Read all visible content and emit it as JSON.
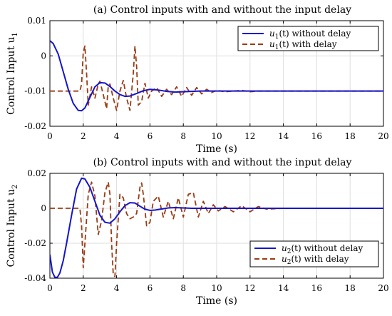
{
  "chart_data": [
    {
      "type": "line",
      "title": "(a) Control inputs with and without the input delay",
      "xlabel": "Time (s)",
      "ylabel": "Control Input u",
      "ylabel_sub": "1",
      "xlim": [
        0,
        20
      ],
      "ylim": [
        -0.02,
        0.01
      ],
      "xticks": [
        "0",
        "2",
        "4",
        "6",
        "8",
        "10",
        "12",
        "14",
        "16",
        "18",
        "20"
      ],
      "yticks": [
        "0.01",
        "0",
        "-0.01",
        "-0.02"
      ],
      "grid": true,
      "legend_position": "top-right",
      "series": [
        {
          "name": "u1(t) without delay",
          "legend_main": "u",
          "legend_sub": "1",
          "legend_rest": "(t) without delay",
          "color": "#1515cc",
          "style": "solid",
          "x": [
            0,
            0.2,
            0.5,
            0.8,
            1.1,
            1.4,
            1.7,
            1.9,
            2.1,
            2.4,
            2.7,
            3.0,
            3.3,
            3.6,
            3.9,
            4.2,
            4.5,
            4.8,
            5.2,
            5.6,
            6.0,
            6.5,
            7.0,
            7.5,
            8.0,
            9.0,
            10.0,
            12.0,
            14.0,
            16.0,
            18.0,
            20.0
          ],
          "y": [
            0.0043,
            0.0035,
            0.0005,
            -0.0045,
            -0.0095,
            -0.0135,
            -0.0155,
            -0.0156,
            -0.0148,
            -0.0118,
            -0.0088,
            -0.0076,
            -0.0077,
            -0.0087,
            -0.01,
            -0.011,
            -0.0115,
            -0.0114,
            -0.0107,
            -0.0099,
            -0.0095,
            -0.0097,
            -0.0101,
            -0.0103,
            -0.0102,
            -0.01,
            -0.01,
            -0.01,
            -0.01,
            -0.01,
            -0.01,
            -0.01
          ]
        },
        {
          "name": "u1(t) with delay",
          "legend_main": "u",
          "legend_sub": "1",
          "legend_rest": "(t) with delay",
          "color": "#9a3c14",
          "style": "dashed",
          "x": [
            0,
            1.8,
            1.9,
            2.0,
            2.1,
            2.2,
            2.3,
            2.5,
            2.7,
            2.9,
            3.0,
            3.2,
            3.4,
            3.5,
            3.6,
            3.8,
            4.0,
            4.2,
            4.4,
            4.6,
            4.8,
            5.0,
            5.1,
            5.2,
            5.3,
            5.5,
            5.7,
            5.9,
            6.1,
            6.4,
            6.7,
            7.0,
            7.3,
            7.6,
            7.9,
            8.2,
            8.5,
            8.8,
            9.1,
            9.4,
            9.7,
            10.0,
            10.5,
            11.0,
            11.5,
            12.0,
            12.5,
            13.0,
            14.0,
            20.0
          ],
          "y": [
            -0.01,
            -0.01,
            -0.008,
            0.001,
            0.0028,
            -0.005,
            -0.014,
            -0.0088,
            -0.012,
            -0.008,
            -0.0072,
            -0.011,
            -0.015,
            -0.0085,
            -0.008,
            -0.012,
            -0.0155,
            -0.01,
            -0.007,
            -0.012,
            -0.0155,
            -0.005,
            0.0028,
            -0.003,
            -0.014,
            -0.013,
            -0.0078,
            -0.012,
            -0.01,
            -0.009,
            -0.0115,
            -0.0095,
            -0.011,
            -0.0088,
            -0.0115,
            -0.009,
            -0.0112,
            -0.009,
            -0.0108,
            -0.0095,
            -0.0104,
            -0.0098,
            -0.0102,
            -0.01,
            -0.0098,
            -0.0102,
            -0.01,
            -0.01,
            -0.01,
            -0.01
          ]
        }
      ]
    },
    {
      "type": "line",
      "title": "(b) Control inputs with and without the input delay",
      "xlabel": "Time (s)",
      "ylabel": "Control Input u",
      "ylabel_sub": "2",
      "xlim": [
        0,
        20
      ],
      "ylim": [
        -0.04,
        0.02
      ],
      "xticks": [
        "0",
        "2",
        "4",
        "6",
        "8",
        "10",
        "12",
        "14",
        "16",
        "18",
        "20"
      ],
      "yticks": [
        "0.02",
        "0",
        "-0.02",
        "-0.04"
      ],
      "grid": true,
      "legend_position": "bottom-right",
      "series": [
        {
          "name": "u2(t) without delay",
          "legend_main": "u",
          "legend_sub": "2",
          "legend_rest": "(t) without delay",
          "color": "#1515cc",
          "style": "solid",
          "x": [
            0,
            0.15,
            0.3,
            0.45,
            0.6,
            0.8,
            1.0,
            1.3,
            1.6,
            1.9,
            2.1,
            2.4,
            2.7,
            3.0,
            3.3,
            3.6,
            3.9,
            4.2,
            4.5,
            4.8,
            5.1,
            5.4,
            5.7,
            6.0,
            6.3,
            6.7,
            7.1,
            7.5,
            8.0,
            8.5,
            9.0,
            10.0,
            12.0,
            14.0,
            16.0,
            18.0,
            20.0
          ],
          "y": [
            -0.0265,
            -0.0365,
            -0.0395,
            -0.0395,
            -0.037,
            -0.03,
            -0.02,
            -0.004,
            0.011,
            0.0172,
            0.0168,
            0.012,
            0.004,
            -0.004,
            -0.008,
            -0.0085,
            -0.006,
            -0.002,
            0.0015,
            0.0032,
            0.003,
            0.0012,
            -0.0005,
            -0.0012,
            -0.001,
            -0.0004,
            0.0002,
            0.0004,
            0.0002,
            0.0,
            0.0,
            0.0,
            0.0,
            0.0,
            0.0,
            0.0,
            0.0
          ]
        },
        {
          "name": "u2(t) with delay",
          "legend_main": "u",
          "legend_sub": "2",
          "legend_rest": "(t) with delay",
          "color": "#9a3c14",
          "style": "dashed",
          "x": [
            0,
            1.8,
            1.9,
            2.0,
            2.1,
            2.3,
            2.5,
            2.7,
            2.9,
            3.1,
            3.3,
            3.5,
            3.6,
            3.7,
            3.8,
            3.9,
            4.0,
            4.2,
            4.4,
            4.6,
            4.8,
            5.0,
            5.2,
            5.4,
            5.5,
            5.6,
            5.8,
            6.0,
            6.2,
            6.5,
            6.8,
            7.1,
            7.4,
            7.7,
            8.0,
            8.3,
            8.6,
            8.9,
            9.2,
            9.5,
            9.8,
            10.1,
            10.5,
            11.0,
            11.5,
            12.0,
            12.5,
            13.0,
            14.0,
            20.0
          ],
          "y": [
            0.0,
            0.0,
            -0.01,
            -0.034,
            -0.02,
            0.008,
            0.015,
            0.007,
            -0.015,
            -0.007,
            0.009,
            0.015,
            0.008,
            -0.02,
            -0.038,
            -0.039,
            -0.02,
            0.008,
            0.006,
            -0.003,
            -0.006,
            -0.005,
            -0.003,
            0.012,
            0.0145,
            0.008,
            -0.01,
            -0.008,
            0.004,
            0.007,
            -0.005,
            0.004,
            -0.006,
            0.006,
            -0.005,
            0.008,
            0.009,
            -0.005,
            0.004,
            -0.003,
            0.002,
            -0.0015,
            0.001,
            -0.002,
            0.0015,
            -0.002,
            0.001,
            -0.0005,
            0.0,
            0.0
          ]
        }
      ]
    }
  ]
}
